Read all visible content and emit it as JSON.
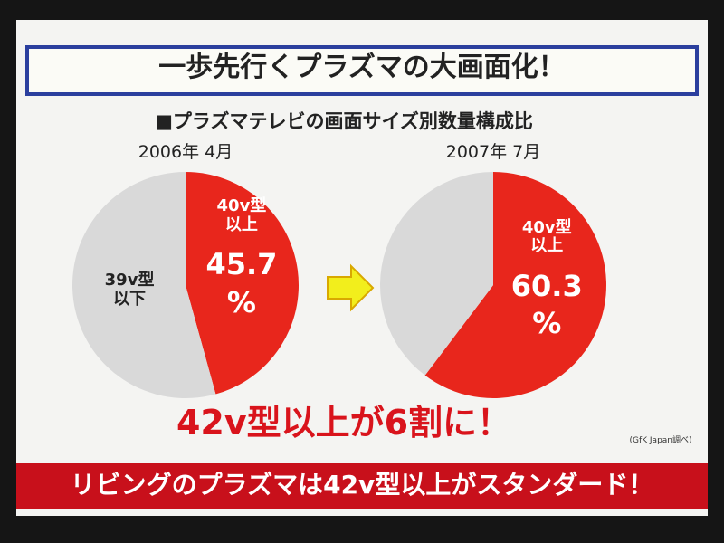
{
  "slide": {
    "title": "一歩先行くプラズマの大画面化！",
    "subtitle": "■プラズマテレビの画面サイズ別数量構成比",
    "conclusion": "42v型以上が6割に！",
    "source": "(GfK Japan調べ)",
    "banner": "リビングのプラズマは42v型以上がスタンダード！"
  },
  "chart_data": [
    {
      "type": "pie",
      "title": "2006年 4月",
      "categories": [
        "39v型\n以下",
        "40v型\n以上"
      ],
      "values": [
        54.3,
        45.7
      ],
      "value_labels": [
        null,
        "45.7\n%"
      ],
      "colors": [
        "#d9d9d9",
        "#e8261c"
      ]
    },
    {
      "type": "pie",
      "title": "2007年 7月",
      "categories": [
        null,
        "40v型\n以上"
      ],
      "values": [
        39.7,
        60.3
      ],
      "value_labels": [
        null,
        "60.3\n%"
      ],
      "colors": [
        "#d9d9d9",
        "#e8261c"
      ]
    }
  ]
}
